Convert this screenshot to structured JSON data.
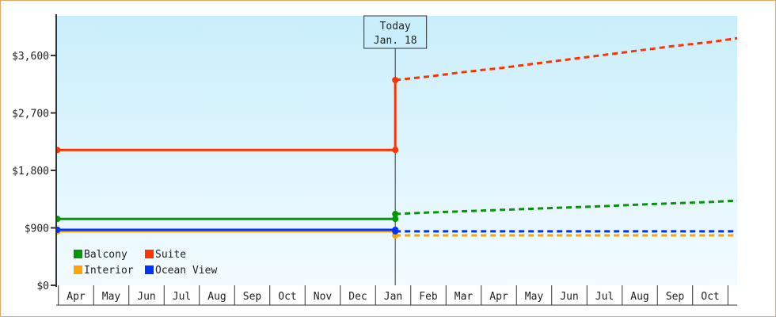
{
  "chart_data": {
    "type": "line",
    "title": "",
    "xlabel": "",
    "ylabel": "",
    "ylim": [
      0,
      4200
    ],
    "y_ticks": [
      {
        "value": 0,
        "label": "$0"
      },
      {
        "value": 900,
        "label": "$900"
      },
      {
        "value": 1800,
        "label": "$1,800"
      },
      {
        "value": 2700,
        "label": "$2,700"
      },
      {
        "value": 3600,
        "label": "$3,600"
      }
    ],
    "categories": [
      "Apr",
      "May",
      "Jun",
      "Jul",
      "Aug",
      "Sep",
      "Oct",
      "Nov",
      "Dec",
      "Jan",
      "Feb",
      "Mar",
      "Apr",
      "May",
      "Jun",
      "Jul",
      "Aug",
      "Sep",
      "Oct"
    ],
    "grid": false,
    "background": [
      "#c9eefb",
      "#f3fbff"
    ],
    "today_marker": {
      "line1": "Today",
      "line2": "Jan. 18",
      "position": 9.06
    },
    "legend": {
      "placement": "bottom-left",
      "columns": 2
    },
    "series": [
      {
        "name": "Balcony",
        "color": "#009900",
        "historical": [
          {
            "x": -0.55,
            "y": 1040
          },
          {
            "x": 9.06,
            "y": 1040
          }
        ],
        "today_value": 1117,
        "forecast": [
          {
            "x": 9.06,
            "y": 1117
          },
          {
            "x": 10,
            "y": 1140
          },
          {
            "x": 11,
            "y": 1160
          },
          {
            "x": 12,
            "y": 1180
          },
          {
            "x": 13,
            "y": 1200
          },
          {
            "x": 14,
            "y": 1220
          },
          {
            "x": 15,
            "y": 1240
          },
          {
            "x": 16,
            "y": 1265
          },
          {
            "x": 17,
            "y": 1285
          },
          {
            "x": 18,
            "y": 1305
          },
          {
            "x": 18.8,
            "y": 1328
          }
        ]
      },
      {
        "name": "Suite",
        "color": "#ff3300",
        "historical": [
          {
            "x": -0.55,
            "y": 2120
          },
          {
            "x": 9.06,
            "y": 2120
          }
        ],
        "today_value": 3215,
        "forecast": [
          {
            "x": 9.06,
            "y": 3215
          },
          {
            "x": 10,
            "y": 3270
          },
          {
            "x": 11,
            "y": 3340
          },
          {
            "x": 12,
            "y": 3400
          },
          {
            "x": 13,
            "y": 3470
          },
          {
            "x": 14,
            "y": 3540
          },
          {
            "x": 15,
            "y": 3610
          },
          {
            "x": 16,
            "y": 3680
          },
          {
            "x": 17,
            "y": 3750
          },
          {
            "x": 18,
            "y": 3810
          },
          {
            "x": 18.8,
            "y": 3873
          }
        ]
      },
      {
        "name": "Interior",
        "color": "#ffa500",
        "historical": [
          {
            "x": -0.55,
            "y": 845
          },
          {
            "x": 9.06,
            "y": 845
          }
        ],
        "today_value": 782,
        "forecast": [
          {
            "x": 9.06,
            "y": 782
          },
          {
            "x": 18.8,
            "y": 782
          }
        ]
      },
      {
        "name": "Ocean View",
        "color": "#0033ff",
        "historical": [
          {
            "x": -0.55,
            "y": 869
          },
          {
            "x": 9.06,
            "y": 869
          }
        ],
        "today_value": 845,
        "forecast": [
          {
            "x": 9.06,
            "y": 845
          },
          {
            "x": 18.8,
            "y": 845
          }
        ]
      }
    ]
  }
}
